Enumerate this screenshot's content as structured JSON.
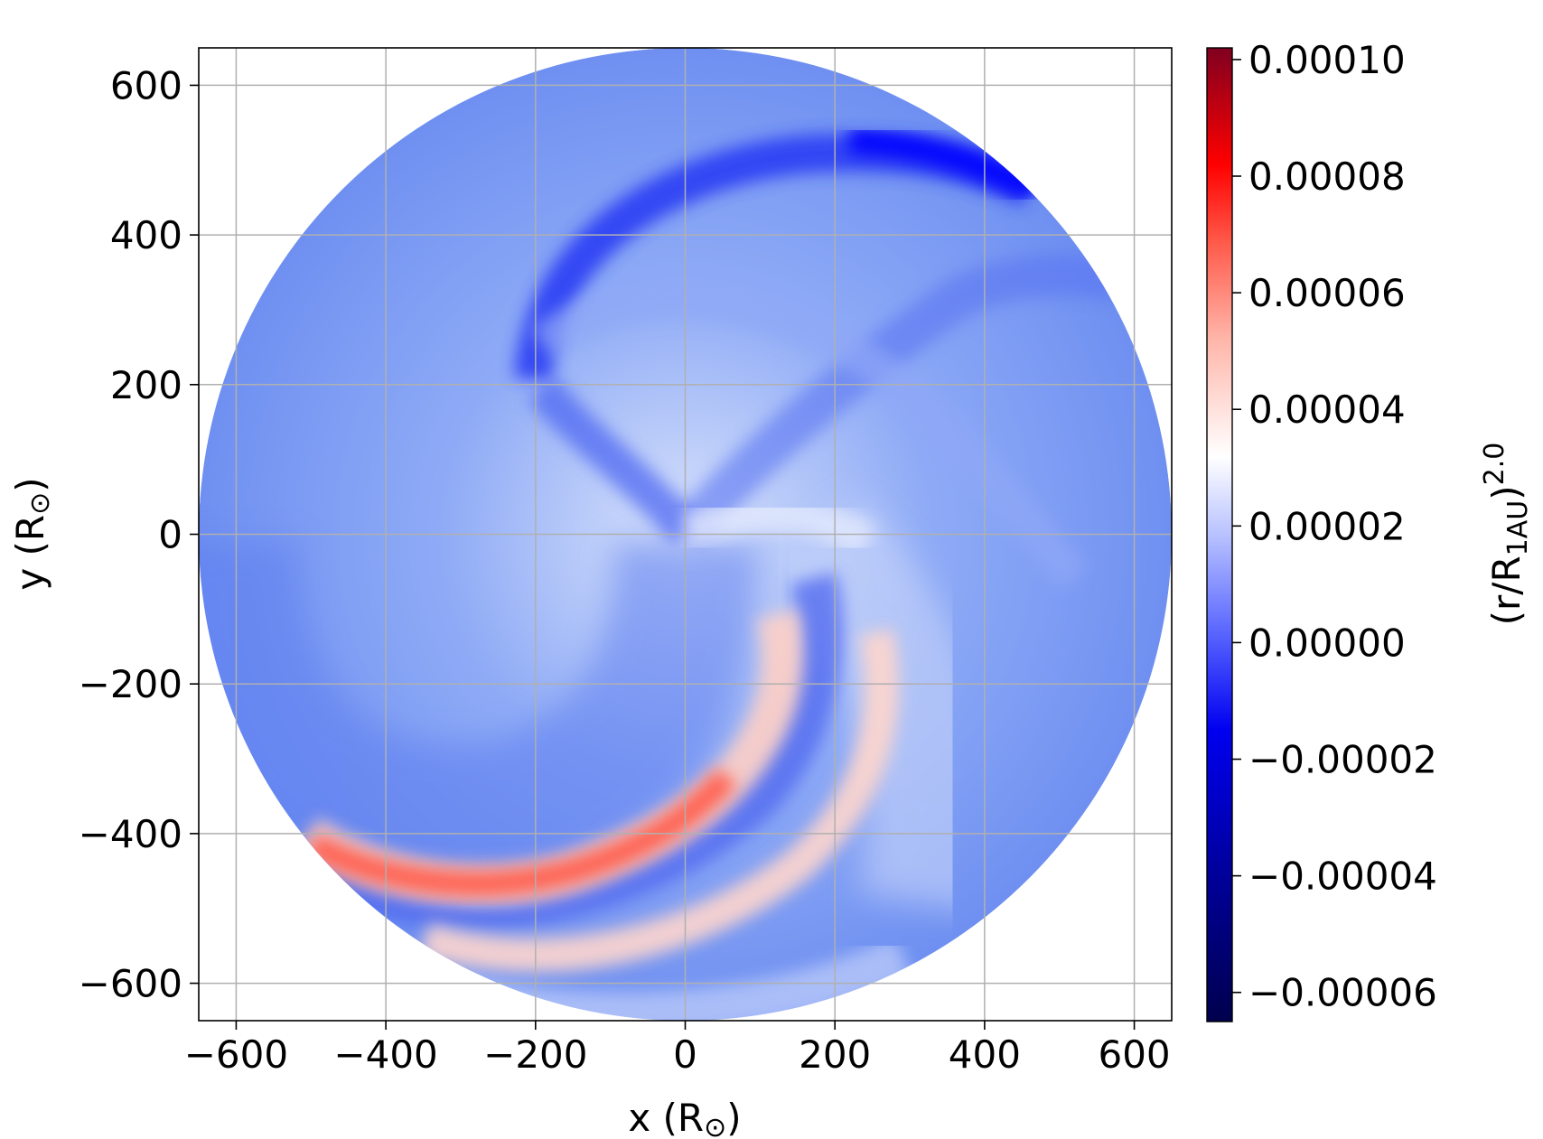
{
  "chart_data": {
    "type": "heatmap",
    "subtype": "polar spiral map (disk)",
    "xlabel": "x (R",
    "xlabel_unit_symbol": "⊙",
    "xlabel_close": ")",
    "ylabel": "y (R",
    "ylabel_unit_symbol": "⊙",
    "ylabel_close": ")",
    "xlim": [
      -650,
      650
    ],
    "ylim": [
      -650,
      650
    ],
    "xticks": [
      -600,
      -400,
      -200,
      0,
      200,
      400,
      600
    ],
    "yticks": [
      -600,
      -400,
      -200,
      0,
      200,
      400,
      600
    ],
    "xtick_labels": [
      "−600",
      "−400",
      "−200",
      "0",
      "200",
      "400",
      "600"
    ],
    "ytick_labels": [
      "−600",
      "−400",
      "−200",
      "0",
      "200",
      "400",
      "600"
    ],
    "grid": true,
    "disk_radius": 650,
    "colormap": "seismic",
    "colorbar": {
      "range": [
        -6.5e-05,
        0.000102
      ],
      "center": 1.8e-05,
      "ticks": [
        0.0001,
        8e-05,
        6e-05,
        4e-05,
        2e-05,
        0.0,
        -2e-05,
        -4e-05,
        -6e-05
      ],
      "tick_labels": [
        "0.00010",
        "0.00008",
        "0.00006",
        "0.00004",
        "0.00002",
        "0.00000",
        "−0.00002",
        "−0.00004",
        "−0.00006"
      ],
      "label_main": "(r/R",
      "label_sub": "1AU",
      "label_close": ")",
      "label_sup": "2.0"
    },
    "features": [
      {
        "kind": "spiral-arm",
        "sign": "negative",
        "peak_value": -2e-05,
        "location": "upper arm, strongest near (300, 520)"
      },
      {
        "kind": "spiral-arm",
        "sign": "positive",
        "peak_value": 6e-05,
        "location": "lower-left arm near (-350, -450)"
      },
      {
        "kind": "spiral-arm",
        "sign": "positive",
        "peak_value": 3e-05,
        "location": "outer lower arm near (-150, -600)"
      }
    ]
  }
}
